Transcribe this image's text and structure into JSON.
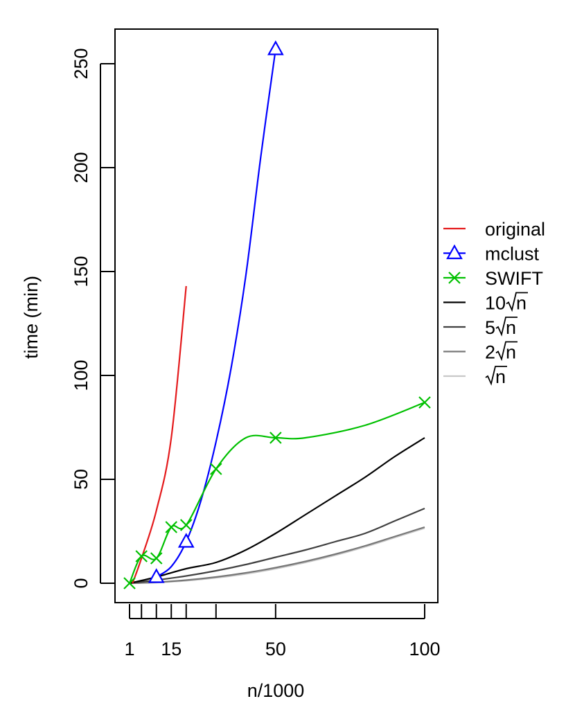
{
  "chart_data": {
    "type": "line",
    "title": "",
    "xlabel": "n/1000",
    "ylabel": "time (min)",
    "xlim": [
      1,
      100
    ],
    "ylim": [
      0,
      250
    ],
    "x_ticks": [
      1,
      5,
      10,
      15,
      20,
      30,
      50,
      100
    ],
    "x_tick_labels": [
      {
        "x": 1,
        "label": "1"
      },
      {
        "x": 15,
        "label": "15"
      },
      {
        "x": 50,
        "label": "50"
      },
      {
        "x": 100,
        "label": "100"
      }
    ],
    "y_ticks": [
      0,
      50,
      100,
      150,
      200,
      250
    ],
    "grid": false,
    "legend_position": "right",
    "series": [
      {
        "name": "original",
        "color": "#e41a1c",
        "marker": "none",
        "x": [
          2,
          5,
          10,
          15,
          20
        ],
        "y": [
          0,
          12,
          35,
          70,
          143
        ]
      },
      {
        "name": "mclust",
        "color": "#0000ff",
        "marker": "triangle",
        "x": [
          10,
          15,
          20,
          25,
          30,
          35,
          40,
          45,
          50
        ],
        "y": [
          3,
          8,
          20,
          40,
          68,
          103,
          148,
          205,
          257
        ]
      },
      {
        "name": "SWIFT",
        "color": "#00c000",
        "marker": "x",
        "x": [
          1,
          5,
          10,
          15,
          20,
          30,
          40,
          50,
          60,
          80,
          100
        ],
        "y": [
          0,
          13,
          12,
          27,
          28,
          55,
          70,
          70,
          70,
          76,
          87
        ]
      },
      {
        "name": "10√n",
        "color": "#000000",
        "marker": "none",
        "x": [
          1,
          10,
          20,
          30,
          40,
          50,
          60,
          70,
          80,
          90,
          100
        ],
        "y": [
          0,
          3,
          7,
          10,
          16,
          24,
          33,
          42,
          51,
          61,
          70
        ]
      },
      {
        "name": "5√n",
        "color": "#404040",
        "marker": "none",
        "x": [
          1,
          10,
          20,
          30,
          40,
          50,
          60,
          70,
          80,
          90,
          100
        ],
        "y": [
          0,
          1.5,
          3.5,
          6,
          9,
          12.5,
          16,
          20,
          24,
          30,
          36
        ]
      },
      {
        "name": "2√n",
        "color": "#777777",
        "marker": "none",
        "x": [
          1,
          10,
          20,
          30,
          40,
          50,
          60,
          70,
          80,
          90,
          100
        ],
        "y": [
          0,
          0.5,
          1.5,
          3,
          5,
          7.5,
          10.5,
          14,
          18,
          22.5,
          27
        ]
      },
      {
        "name": "√n",
        "color": "#c8c8c8",
        "marker": "none",
        "x": [
          1,
          10,
          20,
          30,
          40,
          50,
          60,
          70,
          80,
          90,
          100
        ],
        "y": [
          0,
          0.3,
          1.2,
          2.6,
          4.5,
          7,
          10,
          13.5,
          17.5,
          22,
          26.5
        ]
      }
    ],
    "marked_points": {
      "mclust": [
        [
          10,
          3
        ],
        [
          20,
          20
        ],
        [
          50,
          257
        ]
      ],
      "SWIFT": [
        [
          1,
          0
        ],
        [
          5,
          13
        ],
        [
          10,
          12
        ],
        [
          15,
          27
        ],
        [
          20,
          28
        ],
        [
          30,
          55
        ],
        [
          50,
          70
        ],
        [
          100,
          87
        ]
      ]
    },
    "legend": [
      {
        "label": "original",
        "prefix": "",
        "radicand": "",
        "plain": true
      },
      {
        "label": "mclust",
        "prefix": "",
        "radicand": "",
        "plain": true
      },
      {
        "label": "SWIFT",
        "prefix": "",
        "radicand": "",
        "plain": true
      },
      {
        "label": "",
        "prefix": "10",
        "radicand": "n",
        "plain": false
      },
      {
        "label": "",
        "prefix": "5",
        "radicand": "n",
        "plain": false
      },
      {
        "label": "",
        "prefix": "2",
        "radicand": "n",
        "plain": false
      },
      {
        "label": "",
        "prefix": "",
        "radicand": "n",
        "plain": false
      }
    ]
  }
}
